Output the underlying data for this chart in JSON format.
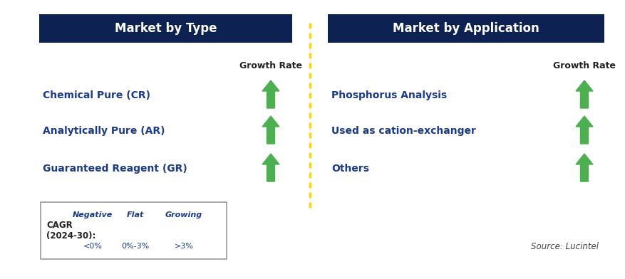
{
  "background_color": "#ffffff",
  "header_bg_color": "#0d2252",
  "header_text_color": "#ffffff",
  "left_header": "Market by Type",
  "right_header": "Market by Application",
  "left_items": [
    "Chemical Pure (CR)",
    "Analytically Pure (AR)",
    "Guaranteed Reagent (GR)"
  ],
  "right_items": [
    "Phosphorus Analysis",
    "Used as cation-exchanger",
    "Others"
  ],
  "item_text_color": "#1a3a8c",
  "growth_rate_label": "Growth Rate",
  "growth_rate_color": "#222222",
  "arrow_color_green": "#4CAF50",
  "arrow_color_red": "#bb0000",
  "arrow_color_yellow": "#FFC000",
  "divider_color": "#FFD700",
  "cagr_label_line1": "CAGR",
  "cagr_label_line2": "(2024-30):",
  "legend_negative_label": "Negative",
  "legend_flat_label": "Flat",
  "legend_growing_label": "Growing",
  "legend_negative_value": "<0%",
  "legend_flat_value": "0%-3%",
  "legend_growing_value": ">3%",
  "source_text": "Source: Lucintel",
  "fig_width": 8.78,
  "fig_height": 3.92,
  "dpi": 100
}
